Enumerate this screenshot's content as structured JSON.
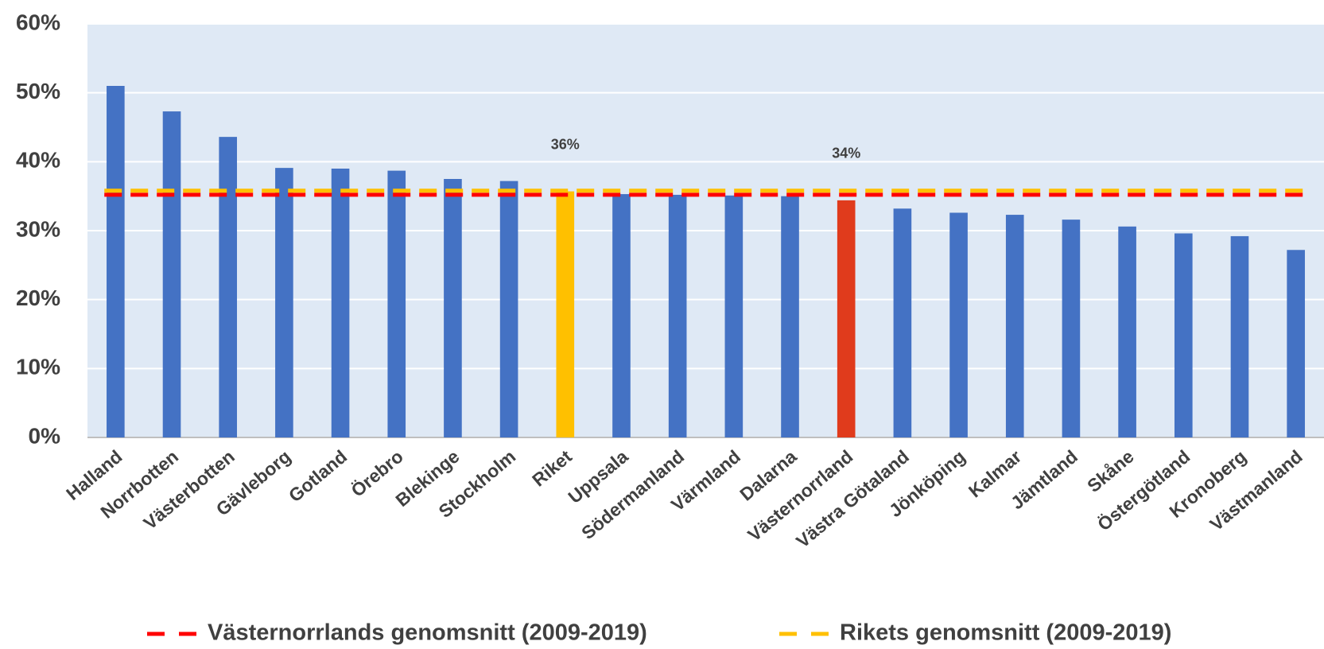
{
  "chart_data": {
    "type": "bar",
    "categories": [
      "Halland",
      "Norrbotten",
      "Västerbotten",
      "Gävleborg",
      "Gotland",
      "Örebro",
      "Blekinge",
      "Stockholm",
      "Riket",
      "Uppsala",
      "Södermanland",
      "Värmland",
      "Dalarna",
      "Västernorrland",
      "Västra Götaland",
      "Jönköping",
      "Kalmar",
      "Jämtland",
      "Skåne",
      "Östergötland",
      "Kronoberg",
      "Västmanland"
    ],
    "values": [
      51.0,
      47.3,
      43.6,
      39.1,
      39.0,
      38.7,
      37.5,
      37.2,
      35.7,
      35.3,
      35.2,
      35.1,
      35.0,
      34.4,
      33.2,
      32.6,
      32.3,
      31.6,
      30.6,
      29.6,
      29.2,
      27.2
    ],
    "value_labels": [
      null,
      null,
      null,
      null,
      null,
      null,
      null,
      null,
      "36%",
      null,
      null,
      null,
      null,
      "34%",
      null,
      null,
      null,
      null,
      null,
      null,
      null,
      null
    ],
    "colors": [
      "#4472c4",
      "#4472c4",
      "#4472c4",
      "#4472c4",
      "#4472c4",
      "#4472c4",
      "#4472c4",
      "#4472c4",
      "#ffc000",
      "#4472c4",
      "#4472c4",
      "#4472c4",
      "#4472c4",
      "#e03b1c",
      "#4472c4",
      "#4472c4",
      "#4472c4",
      "#4472c4",
      "#4472c4",
      "#4472c4",
      "#4472c4",
      "#4472c4"
    ],
    "reference_lines": [
      {
        "name": "Västernorrlands genomsnitt (2009-2019)",
        "value": 35.2,
        "color": "#ff0000"
      },
      {
        "name": "Rikets genomsnitt (2009-2019)",
        "value": 35.8,
        "color": "#ffc000"
      }
    ],
    "ylim": [
      0,
      60
    ],
    "yticks": [
      {
        "value": 0,
        "label": "0%"
      },
      {
        "value": 10,
        "label": "10%"
      },
      {
        "value": 20,
        "label": "20%"
      },
      {
        "value": 30,
        "label": "30%"
      },
      {
        "value": 40,
        "label": "40%"
      },
      {
        "value": 50,
        "label": "50%"
      },
      {
        "value": 60,
        "label": "60%"
      }
    ],
    "grid": true
  }
}
